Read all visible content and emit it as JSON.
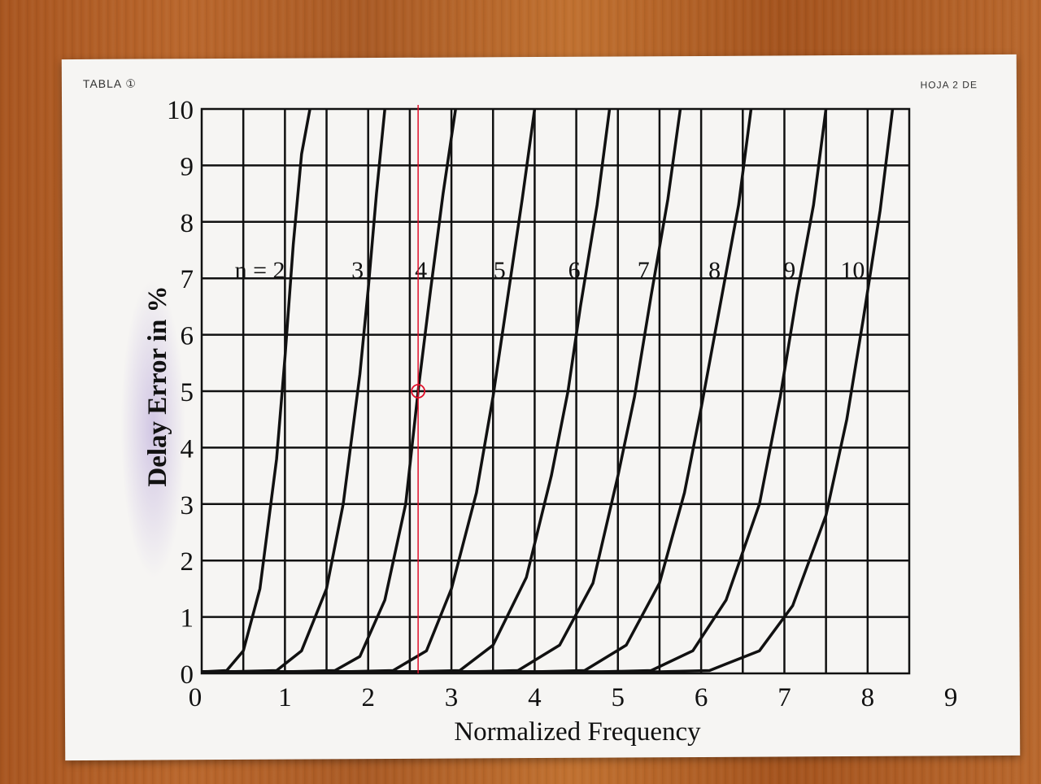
{
  "notes": {
    "left": "TABLA ①",
    "right": "HOJA 2 DE"
  },
  "chart_data": {
    "type": "line",
    "title": "",
    "xlabel": "Normalized Frequency",
    "ylabel": "Delay Error in %",
    "xlim": [
      0,
      8.5
    ],
    "ylim": [
      0,
      10
    ],
    "x_ticks": [
      "0",
      "1",
      "2",
      "3",
      "4",
      "5",
      "6",
      "7",
      "8",
      "9"
    ],
    "y_ticks": [
      "0",
      "1",
      "2",
      "3",
      "4",
      "5",
      "6",
      "7",
      "8",
      "9",
      "10"
    ],
    "grid": true,
    "series": [
      {
        "name": "n = 2",
        "x": [
          0.3,
          0.5,
          0.7,
          0.9,
          1.0,
          1.1,
          1.2,
          1.3
        ],
        "y": [
          0.05,
          0.4,
          1.5,
          3.8,
          5.6,
          7.6,
          9.2,
          10
        ]
      },
      {
        "name": "3",
        "x": [
          0.9,
          1.2,
          1.5,
          1.7,
          1.9,
          2.0,
          2.1,
          2.2
        ],
        "y": [
          0.05,
          0.4,
          1.5,
          3.0,
          5.3,
          6.8,
          8.5,
          10
        ]
      },
      {
        "name": "4",
        "x": [
          1.6,
          1.9,
          2.2,
          2.45,
          2.6,
          2.75,
          2.9,
          3.05
        ],
        "y": [
          0.05,
          0.3,
          1.3,
          3.0,
          5.0,
          6.8,
          8.5,
          10
        ]
      },
      {
        "name": "5",
        "x": [
          2.3,
          2.7,
          3.0,
          3.3,
          3.5,
          3.7,
          3.85,
          4.0
        ],
        "y": [
          0.05,
          0.4,
          1.5,
          3.2,
          4.9,
          6.9,
          8.4,
          10
        ]
      },
      {
        "name": "6",
        "x": [
          3.1,
          3.5,
          3.9,
          4.2,
          4.4,
          4.55,
          4.75,
          4.9
        ],
        "y": [
          0.05,
          0.5,
          1.7,
          3.5,
          5.0,
          6.5,
          8.3,
          10
        ]
      },
      {
        "name": "7",
        "x": [
          3.8,
          4.3,
          4.7,
          5.0,
          5.2,
          5.4,
          5.6,
          5.75
        ],
        "y": [
          0.05,
          0.5,
          1.6,
          3.5,
          4.9,
          6.7,
          8.4,
          10
        ]
      },
      {
        "name": "8",
        "x": [
          4.6,
          5.1,
          5.5,
          5.8,
          6.0,
          6.2,
          6.45,
          6.6
        ],
        "y": [
          0.05,
          0.5,
          1.6,
          3.2,
          4.7,
          6.3,
          8.3,
          10
        ]
      },
      {
        "name": "9",
        "x": [
          5.4,
          5.9,
          6.3,
          6.7,
          6.95,
          7.15,
          7.35,
          7.5
        ],
        "y": [
          0.05,
          0.4,
          1.3,
          3.0,
          4.9,
          6.7,
          8.3,
          10
        ]
      },
      {
        "name": "10",
        "x": [
          6.1,
          6.7,
          7.1,
          7.5,
          7.75,
          7.95,
          8.15,
          8.3
        ],
        "y": [
          0.05,
          0.4,
          1.2,
          2.8,
          4.5,
          6.3,
          8.2,
          10
        ]
      }
    ],
    "annotations": [
      {
        "type": "vertical-line",
        "x": 2.6,
        "color": "#e0102a"
      },
      {
        "type": "circle",
        "x": 2.6,
        "y": 5.0,
        "color": "#e0102a"
      }
    ]
  }
}
